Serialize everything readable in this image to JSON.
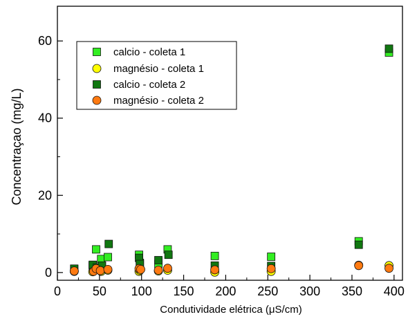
{
  "chart_data": {
    "type": "scatter",
    "title": "",
    "xlabel": "Condutividade elétrica (μS/cm)",
    "ylabel": "Concentraçao (mg/L)",
    "xlim": [
      0,
      410
    ],
    "ylim": [
      -2,
      69
    ],
    "xticks": [
      0,
      50,
      100,
      150,
      200,
      250,
      300,
      350,
      400
    ],
    "yticks": [
      0,
      20,
      40,
      60
    ],
    "grid": false,
    "legend_position": "top-left",
    "series": [
      {
        "name": "calcio - coleta 1",
        "marker": "square",
        "color": "#33ee22",
        "points": [
          [
            20,
            0.9
          ],
          [
            42,
            1.8
          ],
          [
            46,
            6.0
          ],
          [
            52,
            3.5
          ],
          [
            60,
            4.0
          ],
          [
            97,
            4.6
          ],
          [
            98,
            2.5
          ],
          [
            120,
            2.2
          ],
          [
            131,
            6.0
          ],
          [
            187,
            4.3
          ],
          [
            254,
            4.1
          ],
          [
            358,
            8.1
          ],
          [
            394,
            57.0
          ]
        ]
      },
      {
        "name": "magnésio - coleta 1",
        "marker": "circle",
        "color": "#ffff00",
        "points": [
          [
            20,
            0.3
          ],
          [
            42,
            0.2
          ],
          [
            46,
            0.8
          ],
          [
            52,
            0.3
          ],
          [
            60,
            0.6
          ],
          [
            97,
            0.3
          ],
          [
            98,
            0.6
          ],
          [
            120,
            0.4
          ],
          [
            131,
            0.6
          ],
          [
            187,
            0.1
          ],
          [
            254,
            0.3
          ],
          [
            358,
            1.9
          ],
          [
            394,
            1.8
          ]
        ]
      },
      {
        "name": "calcio - coleta 2",
        "marker": "square",
        "color": "#117711",
        "points": [
          [
            20,
            1.0
          ],
          [
            42,
            2.0
          ],
          [
            47,
            1.3
          ],
          [
            53,
            1.8
          ],
          [
            61,
            7.4
          ],
          [
            97,
            3.8
          ],
          [
            98,
            2.2
          ],
          [
            120,
            3.2
          ],
          [
            132,
            4.6
          ],
          [
            187,
            1.8
          ],
          [
            254,
            1.7
          ],
          [
            358,
            7.2
          ],
          [
            394,
            58.0
          ]
        ]
      },
      {
        "name": "magnésio - coleta 2",
        "marker": "circle",
        "color": "#ff7a11",
        "points": [
          [
            20,
            0.4
          ],
          [
            43,
            0.3
          ],
          [
            46,
            1.0
          ],
          [
            51,
            0.5
          ],
          [
            60,
            0.8
          ],
          [
            97,
            1.0
          ],
          [
            99,
            0.8
          ],
          [
            120,
            0.6
          ],
          [
            131,
            1.1
          ],
          [
            187,
            0.7
          ],
          [
            254,
            1.0
          ],
          [
            358,
            1.8
          ],
          [
            394,
            1.1
          ]
        ]
      }
    ]
  }
}
